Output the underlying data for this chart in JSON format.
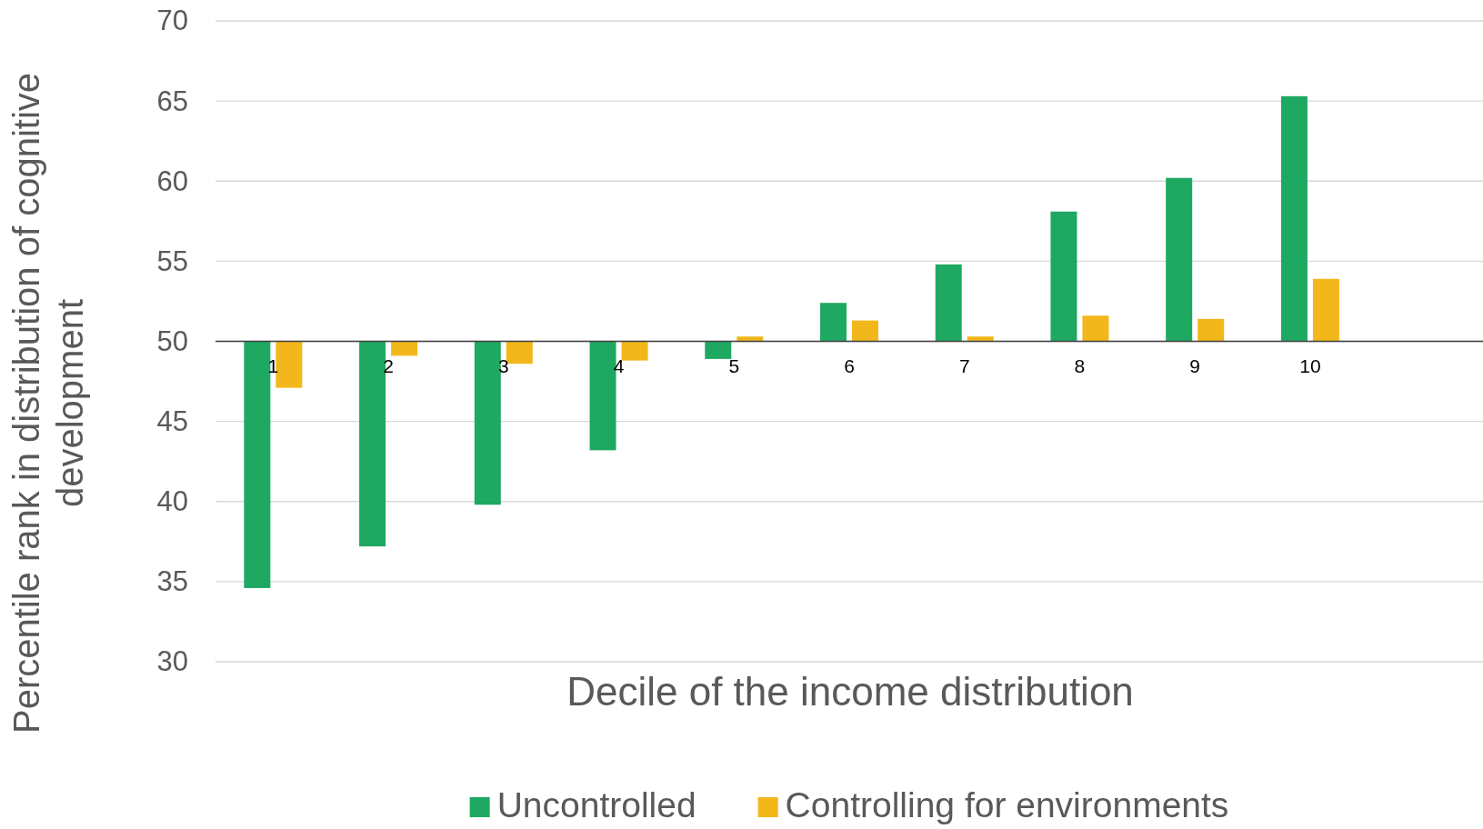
{
  "chart_data": {
    "type": "bar",
    "xlabel": "Decile of the income distribution",
    "ylabel": "Percentile rank in distribution of cognitive development",
    "categories": [
      "1",
      "2",
      "3",
      "4",
      "5",
      "6",
      "7",
      "8",
      "9",
      "10",
      null
    ],
    "series": [
      {
        "name": "Uncontrolled",
        "color": "#1fa862",
        "base": [
          50,
          50,
          50,
          50,
          50,
          50,
          50,
          50,
          50,
          50,
          null
        ],
        "values": [
          -15.4,
          -12.8,
          -10.2,
          -6.8,
          -1.1,
          2.4,
          4.8,
          8.1,
          10.2,
          15.3,
          null
        ]
      },
      {
        "name": "Controlling for environments",
        "color": "#f2b71b",
        "base": [
          50,
          50,
          50,
          50,
          50,
          50,
          50,
          50,
          50,
          50,
          null
        ],
        "values": [
          -2.9,
          -0.9,
          -1.4,
          -1.2,
          0.3,
          1.3,
          0.3,
          1.6,
          1.4,
          3.9,
          null
        ]
      }
    ],
    "ylim": [
      30,
      70
    ],
    "yticks": [
      30,
      35,
      40,
      45,
      50,
      55,
      60,
      65,
      70
    ],
    "grid": "y",
    "legend": "bottom"
  }
}
